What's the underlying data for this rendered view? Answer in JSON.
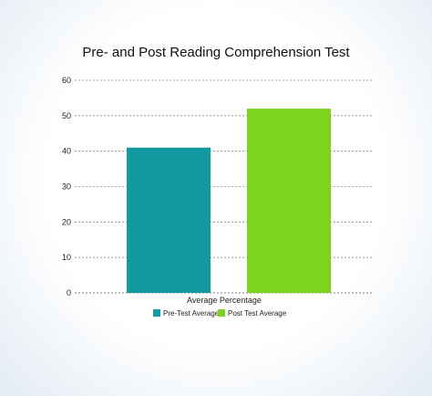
{
  "chart_data": {
    "type": "bar",
    "title": "Pre- and Post Reading Comprehension Test",
    "categories": [
      "Average Percentage"
    ],
    "series": [
      {
        "name": "Pre-Test Average",
        "values": [
          41
        ],
        "color": "#13999f"
      },
      {
        "name": "Post Test Average",
        "values": [
          52
        ],
        "color": "#7ed320"
      }
    ],
    "xlabel": "",
    "ylabel": "",
    "ylim": [
      0,
      60
    ],
    "yticks": [
      0,
      10,
      20,
      30,
      40,
      50,
      60
    ],
    "grid": "horizontal dashed",
    "legend_position": "bottom-center"
  }
}
